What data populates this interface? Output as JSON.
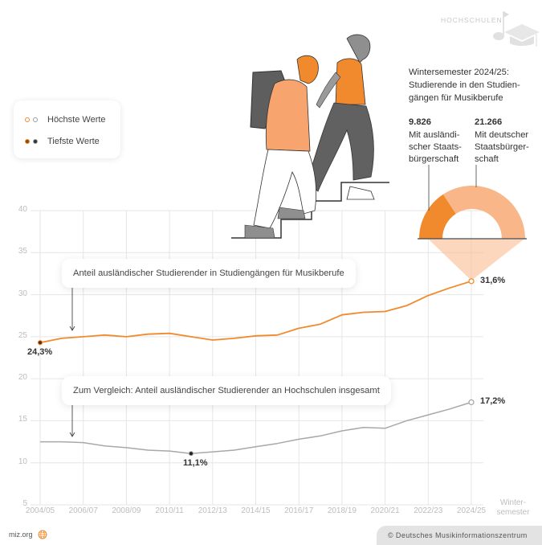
{
  "brand": {
    "label": "HOCHSCHULEN",
    "icon": "music-note-graduation-cap-icon"
  },
  "legend": {
    "items": [
      {
        "label": "Höchste Werte",
        "marker": "open-circle",
        "colors": [
          "#f18a2d",
          "#9a9a9a"
        ]
      },
      {
        "label": "Tiefste Werte",
        "marker": "filled-circle",
        "colors": [
          "#8a4a12",
          "#333333"
        ]
      }
    ]
  },
  "info": {
    "title": "Wintersemester 2024/25: Studierende in den Studien­gängen für Musikberufe",
    "title_lines": [
      "Wintersemester 2024/25:",
      "Studierende in den Studien-",
      "gängen für Musikberufe"
    ],
    "foreign": {
      "value": "9.826",
      "label_lines": [
        "Mit ausländi-",
        "scher Staats-",
        "bürgerschaft"
      ]
    },
    "german": {
      "value": "21.266",
      "label_lines": [
        "Mit deutscher",
        "Staatsbürger-",
        "schaft"
      ]
    }
  },
  "callouts": {
    "music": "Anteil ausländischer Studierender in Studiengängen für Musikberufe",
    "all": "Zum Vergleich: Anteil ausländischer Studierender an Hochschulen insgesamt"
  },
  "annotations": {
    "music_max": "31,6%",
    "music_min": "24,3%",
    "all_max": "17,2%",
    "all_min": "11,1%"
  },
  "axis": {
    "y_ticks": [
      "40",
      "35",
      "30",
      "25",
      "20",
      "15",
      "10",
      "5"
    ],
    "x_ticks": [
      "2004/05",
      "2006/07",
      "2008/09",
      "2010/11",
      "2012/13",
      "2014/15",
      "2016/17",
      "2018/19",
      "2020/21",
      "2022/23",
      "2024/25"
    ],
    "x_unit_lines": [
      "Winter-",
      "semester"
    ]
  },
  "colors": {
    "orange": "#f18a2d",
    "orange_light": "#f9b789",
    "gray_line": "#a8a8a8",
    "grid": "#e6e6e6"
  },
  "footer": {
    "site": "miz.org",
    "site_icon": "globe-icon",
    "copyright": "© Deutsches Musikinformationszentrum"
  },
  "chart_data": [
    {
      "type": "line",
      "title": "Anteil ausländischer Studierender (%)",
      "xlabel": "Wintersemester",
      "ylabel": "",
      "ylim": [
        5,
        40
      ],
      "grid": true,
      "x": [
        "2004/05",
        "2005/06",
        "2006/07",
        "2007/08",
        "2008/09",
        "2009/10",
        "2010/11",
        "2011/12",
        "2012/13",
        "2013/14",
        "2014/15",
        "2015/16",
        "2016/17",
        "2017/18",
        "2018/19",
        "2019/20",
        "2020/21",
        "2021/22",
        "2022/23",
        "2023/24",
        "2024/25"
      ],
      "series": [
        {
          "name": "Anteil ausländischer Studierender in Studiengängen für Musikberufe",
          "color": "#f18a2d",
          "values": [
            24.3,
            24.8,
            25.0,
            25.2,
            25.0,
            25.3,
            25.4,
            25.0,
            24.6,
            24.8,
            25.1,
            25.2,
            26.0,
            26.5,
            27.6,
            27.9,
            28.0,
            28.7,
            29.9,
            30.8,
            31.6
          ]
        },
        {
          "name": "Zum Vergleich: Anteil ausländischer Studierender an Hochschulen insgesamt",
          "color": "#a8a8a8",
          "values": [
            12.5,
            12.5,
            12.4,
            12.0,
            11.8,
            11.5,
            11.4,
            11.1,
            11.3,
            11.5,
            11.9,
            12.3,
            12.8,
            13.2,
            13.8,
            14.2,
            14.1,
            15.0,
            15.7,
            16.4,
            17.2
          ]
        }
      ],
      "annotations": [
        "24,3% (min, 2004/05)",
        "31,6% (max, 2024/25)",
        "11,1% (min, 2011/12)",
        "17,2% (max, 2024/25)"
      ]
    },
    {
      "type": "pie",
      "title": "Wintersemester 2024/25: Studierende in den Studiengängen für Musikberufe",
      "categories": [
        "Mit ausländischer Staatsbürgerschaft",
        "Mit deutscher Staatsbürgerschaft"
      ],
      "values": [
        9826,
        21266
      ],
      "colors": [
        "#f18a2d",
        "#f9b789"
      ],
      "style": "half-donut"
    }
  ]
}
